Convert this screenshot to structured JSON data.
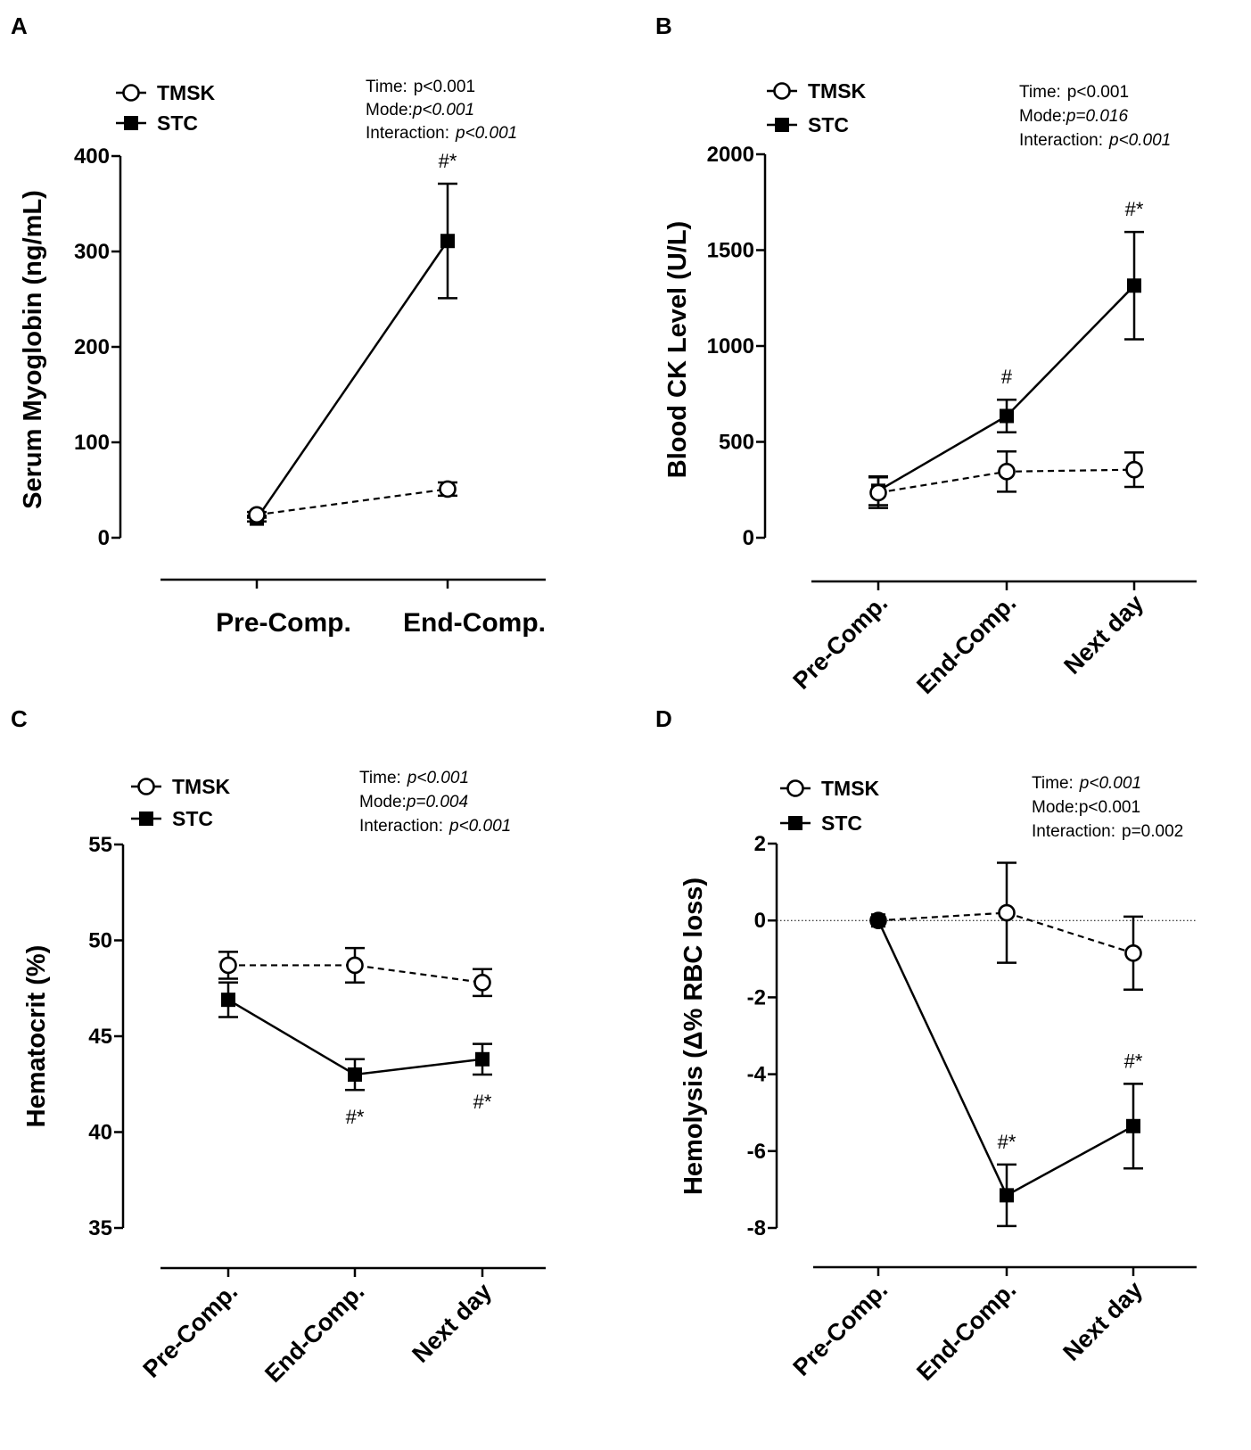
{
  "chart_data": [
    {
      "panel": "A",
      "type": "line",
      "ylabel": "Serum Myoglobin (ng/mL)",
      "ylim": [
        0,
        400
      ],
      "yticks": [
        0,
        100,
        200,
        300,
        400
      ],
      "categories": [
        "Pre-Comp.",
        "End-Comp."
      ],
      "series": [
        {
          "name": "TMSK",
          "marker": "open-circle",
          "style": "dashed",
          "values": [
            24,
            51
          ],
          "errors": [
            3,
            7
          ]
        },
        {
          "name": "STC",
          "marker": "filled-square",
          "style": "solid",
          "values": [
            20,
            311
          ],
          "errors": [
            3,
            60
          ]
        }
      ],
      "stats": [
        {
          "label": "Time:",
          "value": "p<0.001",
          "italic": "p"
        },
        {
          "label": "Mode:",
          "value": "p<0.001",
          "italic": "all"
        },
        {
          "label": "Interaction:",
          "value": "p<0.001",
          "italic": "all"
        }
      ],
      "annotations": [
        {
          "text": "#*",
          "category": "End-Comp.",
          "position": "above"
        }
      ]
    },
    {
      "panel": "B",
      "type": "line",
      "ylabel": "Blood CK Level (U/L)",
      "ylim": [
        0,
        2000
      ],
      "yticks": [
        0,
        500,
        1000,
        1500,
        2000
      ],
      "categories": [
        "Pre-Comp.",
        "End-Comp.",
        "Next day"
      ],
      "series": [
        {
          "name": "TMSK",
          "marker": "open-circle",
          "style": "dashed",
          "values": [
            235,
            345,
            355
          ],
          "errors": [
            80,
            105,
            90
          ]
        },
        {
          "name": "STC",
          "marker": "filled-square",
          "style": "solid",
          "values": [
            245,
            635,
            1315
          ],
          "errors": [
            75,
            85,
            280
          ]
        }
      ],
      "stats": [
        {
          "label": "Time:",
          "value": "p<0.001",
          "italic": "p"
        },
        {
          "label": "Mode:",
          "value": "p=0.016",
          "italic": "all"
        },
        {
          "label": "Interaction:",
          "value": "p<0.001",
          "italic": "all"
        }
      ],
      "annotations": [
        {
          "text": "#",
          "category": "End-Comp.",
          "position": "above"
        },
        {
          "text": "#*",
          "category": "Next day",
          "position": "above"
        }
      ]
    },
    {
      "panel": "C",
      "type": "line",
      "ylabel": "Hematocrit (%)",
      "ylim": [
        35,
        55
      ],
      "yticks": [
        35,
        40,
        45,
        50,
        55
      ],
      "categories": [
        "Pre-Comp.",
        "End-Comp.",
        "Next day"
      ],
      "series": [
        {
          "name": "TMSK",
          "marker": "open-circle",
          "style": "dashed",
          "values": [
            48.7,
            48.7,
            47.8
          ],
          "errors": [
            0.7,
            0.9,
            0.7
          ]
        },
        {
          "name": "STC",
          "marker": "filled-square",
          "style": "solid",
          "values": [
            46.9,
            43.0,
            43.8
          ],
          "errors": [
            0.9,
            0.8,
            0.8
          ]
        }
      ],
      "stats": [
        {
          "label": "Time:",
          "value": "p<0.001",
          "italic": "all"
        },
        {
          "label": "Mode:",
          "value": "p=0.004",
          "italic": "all"
        },
        {
          "label": "Interaction:",
          "value": "p<0.001",
          "italic": "all"
        }
      ],
      "annotations": [
        {
          "text": "#*",
          "category": "End-Comp.",
          "position": "below"
        },
        {
          "text": "#*",
          "category": "Next day",
          "position": "below"
        }
      ]
    },
    {
      "panel": "D",
      "type": "line",
      "ylabel": "Hemolysis (Δ% RBC loss)",
      "ylim": [
        -8,
        2
      ],
      "yticks": [
        -8,
        -6,
        -4,
        -2,
        0,
        2
      ],
      "categories": [
        "Pre-Comp.",
        "End-Comp.",
        "Next day"
      ],
      "zero_line": true,
      "series": [
        {
          "name": "TMSK",
          "marker": "open-circle",
          "style": "dashed",
          "values": [
            0,
            0.2,
            -0.85
          ],
          "errors": [
            0,
            1.3,
            0.95
          ]
        },
        {
          "name": "STC",
          "marker": "filled-square",
          "style": "solid",
          "values": [
            0,
            -7.15,
            -5.35
          ],
          "errors": [
            0,
            0.8,
            1.1
          ]
        }
      ],
      "stats": [
        {
          "label": "Time:",
          "value": "p<0.001",
          "italic": "all"
        },
        {
          "label": "Mode:",
          "value": "p<0.001",
          "italic": "p"
        },
        {
          "label": "Interaction:",
          "value": "p=0.002",
          "italic": "p"
        }
      ],
      "annotations": [
        {
          "text": "#*",
          "category": "End-Comp.",
          "position": "above"
        },
        {
          "text": "#*",
          "category": "Next day",
          "position": "above"
        }
      ]
    }
  ]
}
